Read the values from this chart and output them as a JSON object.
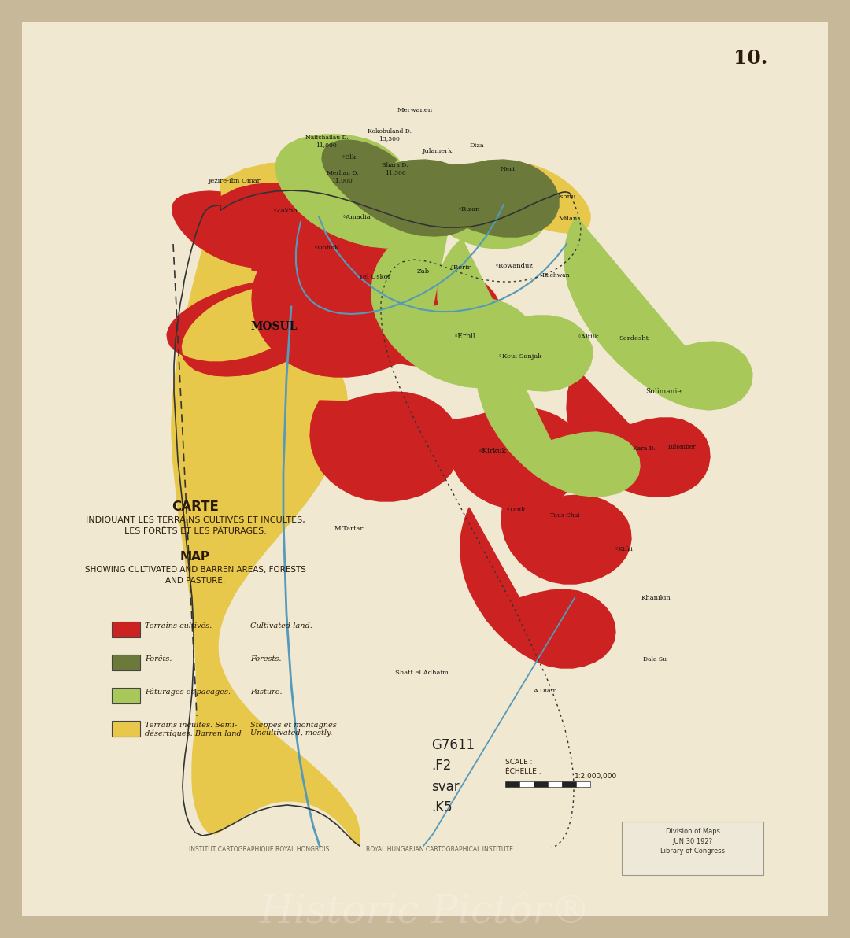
{
  "background_color": "#c8b89a",
  "paper_color": "#f0e8d0",
  "title_fr": "CARTE",
  "subtitle_fr": "INDIQUANT LES TERRAINS CULTIVÉS ET INCULTES,\nLES FORÊTS ET LES PÂTURAGES.",
  "title_en": "MAP",
  "subtitle_en": "SHOWING CULTIVATED AND BARREN AREAS, FORESTS\nAND PASTURE.",
  "sheet_number": "10.",
  "legend_items": [
    {
      "color": "#cc2222",
      "label_fr": "Terrains cultivés.",
      "label_en": "Cultivated land."
    },
    {
      "color": "#6b7a3a",
      "label_fr": "Forêts.",
      "label_en": "Forests."
    },
    {
      "color": "#a8c85a",
      "label_fr": "Pâturages et pacages.",
      "label_en": "Pasture."
    },
    {
      "color": "#e8c84a",
      "label_fr": "Terrains incultes. Semi-\ndésertiques. Barren land",
      "label_en": "Steppes et montagnes\nUncultivated, mostly."
    }
  ],
  "catalog_text": "G7611\n.F2\nsvar\n.K5",
  "echelle_label": "ÉCHELLE :",
  "scale_label": "SCALE :",
  "scale_ratio": "1:2,000,000",
  "watermark": "Historic Pictôr®",
  "footer_left": "INSTITUT CARTOGRAPHIQUE ROYAL HONGROIS.",
  "footer_right": "ROYAL HUNGARIAN CARTOGRAPHICAL INSTITUTE.",
  "stamp_text": "Division of Maps\nJUN 30 192?\nLibrary of Congress",
  "red": "#cc2222",
  "dark_green": "#6b7a3a",
  "light_green": "#a8c85a",
  "yellow": "#e8c84a",
  "text_color": "#2a1a0a",
  "river_color": "#5599bb",
  "border_color": "#333333"
}
